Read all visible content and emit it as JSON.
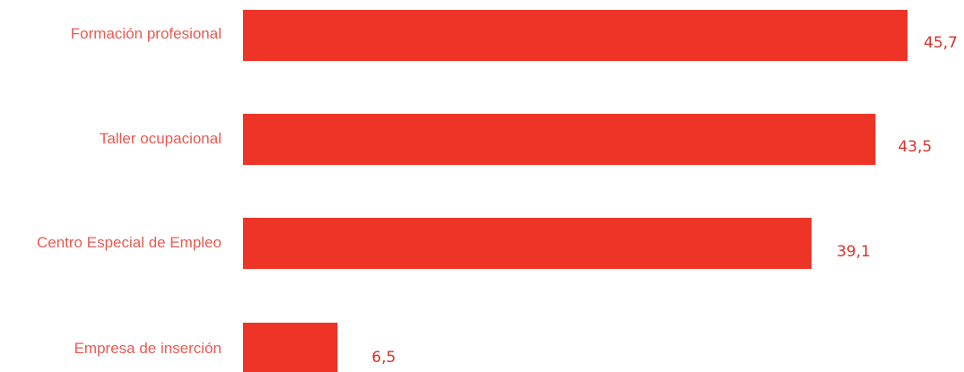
{
  "chart_data": {
    "type": "bar",
    "orientation": "horizontal",
    "categories": [
      "Formación profesional",
      "Taller ocupacional",
      "Centro Especial  de Empleo",
      "Empresa de inserción"
    ],
    "values": [
      45.7,
      43.5,
      39.1,
      6.5
    ],
    "value_labels": [
      "45,7",
      "43,5",
      "39,1",
      "6,5"
    ],
    "title": "",
    "xlabel": "",
    "ylabel": "",
    "xlim": [
      0,
      45.7
    ],
    "grid": false,
    "legend": "none",
    "colors": {
      "bar": "#ee3427",
      "category_text": "#e85a52",
      "value_text": "#d8322a"
    }
  }
}
